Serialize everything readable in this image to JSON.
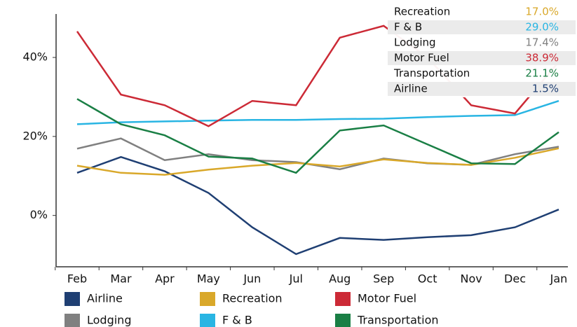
{
  "chart_data": {
    "type": "line",
    "categories": [
      "Feb",
      "Mar",
      "Apr",
      "May",
      "Jun",
      "Jul",
      "Aug",
      "Sep",
      "Oct",
      "Nov",
      "Dec",
      "Jan"
    ],
    "series": [
      {
        "name": "Airline",
        "color": "#1f3f73",
        "values": [
          10.8,
          14.8,
          11.2,
          5.7,
          -3.0,
          -9.8,
          -5.7,
          -6.2,
          -5.5,
          -5.0,
          -3.0,
          1.5
        ]
      },
      {
        "name": "Lodging",
        "color": "#808080",
        "values": [
          16.9,
          19.5,
          14.0,
          15.5,
          14.0,
          13.5,
          11.7,
          14.4,
          13.2,
          12.8,
          15.5,
          17.4
        ]
      },
      {
        "name": "Recreation",
        "color": "#d9a82a",
        "values": [
          12.6,
          10.8,
          10.3,
          11.6,
          12.6,
          13.3,
          12.4,
          14.2,
          13.3,
          12.8,
          14.6,
          17.0
        ]
      },
      {
        "name": "F & B",
        "color": "#29b5e3",
        "values": [
          23.1,
          23.6,
          23.8,
          24.0,
          24.2,
          24.2,
          24.4,
          24.5,
          24.9,
          25.2,
          25.4,
          29.0
        ]
      },
      {
        "name": "Motor Fuel",
        "color": "#cc2a36",
        "values": [
          46.6,
          30.6,
          27.9,
          22.6,
          29.0,
          27.9,
          45.0,
          48.0,
          40.0,
          27.9,
          25.8,
          38.9
        ]
      },
      {
        "name": "Transportation",
        "color": "#1a7f45",
        "values": [
          29.5,
          23.1,
          20.3,
          14.9,
          14.4,
          10.8,
          21.5,
          22.8,
          18.0,
          13.2,
          13.0,
          21.1
        ]
      }
    ],
    "ylim": [
      -13,
      51
    ],
    "yticks": [
      {
        "value": 0,
        "label": "0%"
      },
      {
        "value": 20,
        "label": "20%"
      },
      {
        "value": 40,
        "label": "40%"
      }
    ],
    "grid": false,
    "tooltip": {
      "rows": [
        {
          "name": "Recreation",
          "value": "17.0%",
          "color": "#d9a82a"
        },
        {
          "name": "F & B",
          "value": "29.0%",
          "color": "#29b5e3"
        },
        {
          "name": "Lodging",
          "value": "17.4%",
          "color": "#808080"
        },
        {
          "name": "Motor Fuel",
          "value": "38.9%",
          "color": "#cc2a36"
        },
        {
          "name": "Transportation",
          "value": "21.1%",
          "color": "#1a7f45"
        },
        {
          "name": "Airline",
          "value": "1.5%",
          "color": "#1f3f73"
        }
      ]
    }
  }
}
